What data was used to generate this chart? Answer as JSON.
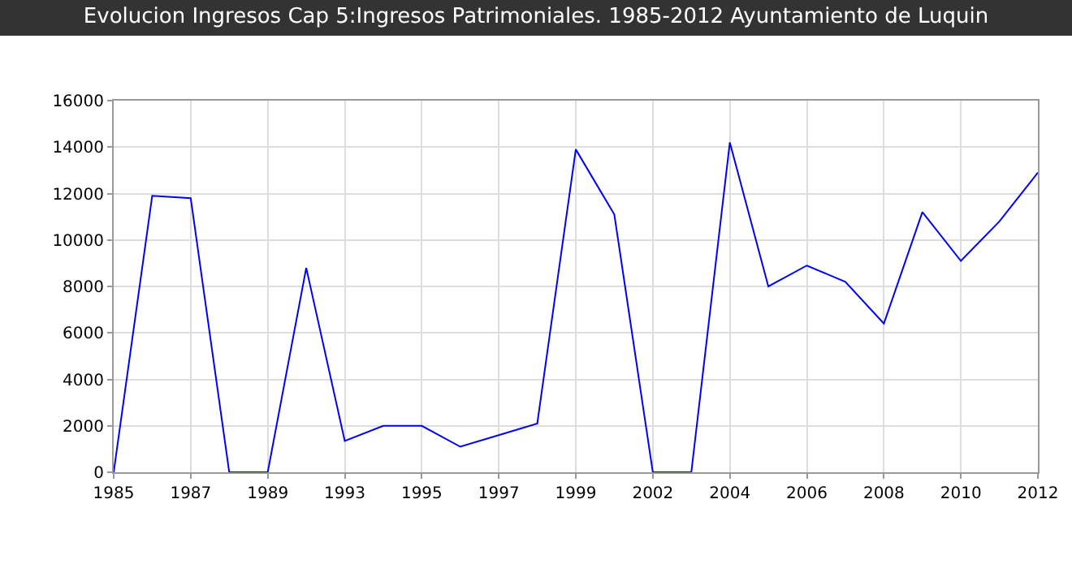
{
  "chart_data": {
    "type": "line",
    "title": "Evolucion Ingresos Cap 5:Ingresos Patrimoniales. 1985-2012 Ayuntamiento de Luquin",
    "categories": [
      "1985",
      null,
      "1987",
      null,
      "1989",
      null,
      "1993",
      null,
      "1995",
      null,
      "1997",
      null,
      "1999",
      null,
      "2002",
      null,
      "2004",
      null,
      "2006",
      null,
      "2008",
      null,
      "2010",
      null,
      "2012"
    ],
    "series": [
      {
        "color": "#0000ff",
        "values": [
          0,
          11900,
          11800,
          0,
          0,
          8800,
          1350,
          2000,
          2000,
          1100,
          1600,
          2100,
          13900,
          11100,
          0,
          0,
          14200,
          8000,
          8900,
          8200,
          6400,
          11200,
          9100,
          10800,
          12900
        ]
      }
    ],
    "ylim": [
      0,
      16000
    ],
    "yticks": [
      0,
      2000,
      4000,
      6000,
      8000,
      10000,
      12000,
      14000,
      16000
    ],
    "grid": true,
    "legend": false,
    "marker": "none",
    "line_style": "solid"
  }
}
